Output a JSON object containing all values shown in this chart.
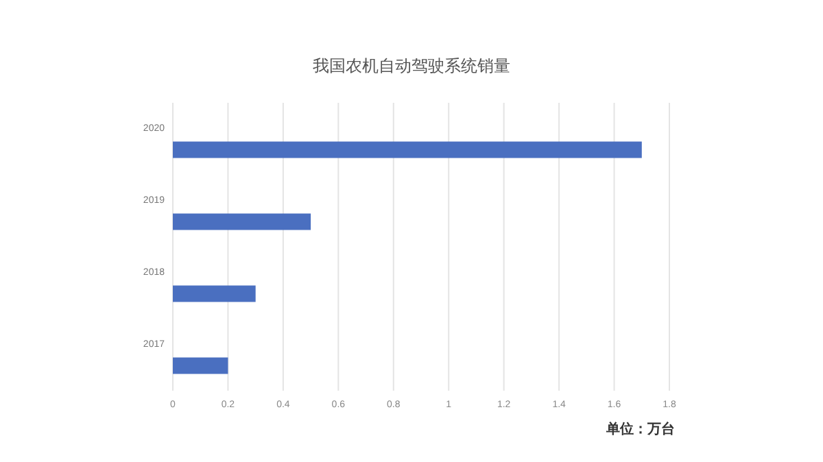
{
  "chart_data": {
    "type": "bar",
    "orientation": "horizontal",
    "title": "我国农机自动驾驶系统销量",
    "categories": [
      "2020",
      "2019",
      "2018",
      "2017"
    ],
    "values": [
      1.7,
      0.5,
      0.3,
      0.2
    ],
    "color": "#4a6fc0",
    "xlim": [
      0,
      1.8
    ],
    "xticks": [
      0,
      0.2,
      0.4,
      0.6,
      0.8,
      1,
      1.2,
      1.4,
      1.6,
      1.8
    ],
    "grid": "x",
    "annotations": [
      "单位：万台"
    ]
  }
}
